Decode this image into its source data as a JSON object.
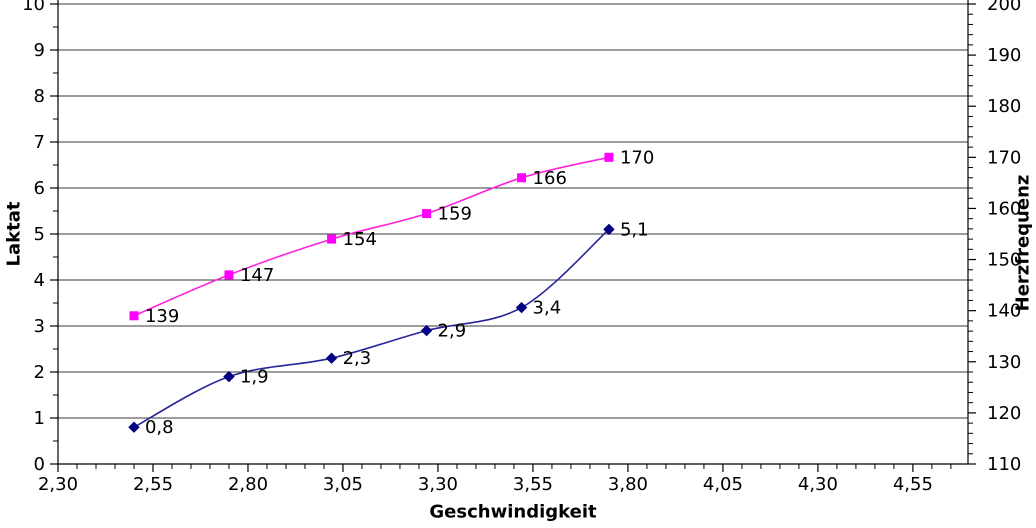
{
  "chart_data": {
    "type": "line",
    "title": "",
    "legend": "none",
    "grid": "horizontal-major",
    "background_color": "#FFFFFF",
    "axis_color": "#000000",
    "gridline_color": "#3A3A3A",
    "text_color": "#000000",
    "x_axis": {
      "title": "Geschwindigkeit",
      "min": 2.3,
      "max": 4.695,
      "major_step": 0.25,
      "minor_step": 0.05,
      "major_ticks": [
        2.3,
        2.55,
        2.8,
        3.05,
        3.3,
        3.55,
        3.8,
        4.05,
        4.3,
        4.55
      ],
      "tick_labels": [
        "2,30",
        "2,55",
        "2,80",
        "3,05",
        "3,30",
        "3,55",
        "3,80",
        "4,05",
        "4,30",
        "4,55"
      ]
    },
    "y_axis_left": {
      "title": "Laktat",
      "min": 0,
      "max": 10,
      "major_step": 1,
      "minor_step": 0.5,
      "major_ticks": [
        0,
        1,
        2,
        3,
        4,
        5,
        6,
        7,
        8,
        9,
        10
      ],
      "tick_labels": [
        "0",
        "1",
        "2",
        "3",
        "4",
        "5",
        "6",
        "7",
        "8",
        "9",
        "10"
      ]
    },
    "y_axis_right": {
      "title": "Herzfrequenz",
      "min": 110,
      "max": 200,
      "major_step": 10,
      "minor_step": 2,
      "major_ticks": [
        110,
        120,
        130,
        140,
        150,
        160,
        170,
        180,
        190,
        200
      ],
      "tick_labels": [
        "110",
        "120",
        "130",
        "140",
        "150",
        "160",
        "170",
        "180",
        "190",
        "200"
      ]
    },
    "series": [
      {
        "name": "Laktat",
        "axis": "left",
        "marker": "diamond",
        "marker_color": "#000080",
        "line_color": "#26269A",
        "smoothed": true,
        "x": [
          2.5,
          2.75,
          3.02,
          3.27,
          3.52,
          3.75
        ],
        "y": [
          0.8,
          1.9,
          2.3,
          2.9,
          3.4,
          5.1
        ],
        "point_labels": [
          "0,8",
          "1,9",
          "2,3",
          "2,9",
          "3,4",
          "5,1"
        ]
      },
      {
        "name": "Herzfrequenz",
        "axis": "right",
        "marker": "square",
        "marker_color": "#FF00FF",
        "line_color": "#FF22DD",
        "smoothed": true,
        "x": [
          2.5,
          2.75,
          3.02,
          3.27,
          3.52,
          3.75
        ],
        "y": [
          139,
          147,
          154,
          159,
          166,
          170
        ],
        "point_labels": [
          "139",
          "147",
          "154",
          "159",
          "166",
          "170"
        ]
      }
    ]
  }
}
